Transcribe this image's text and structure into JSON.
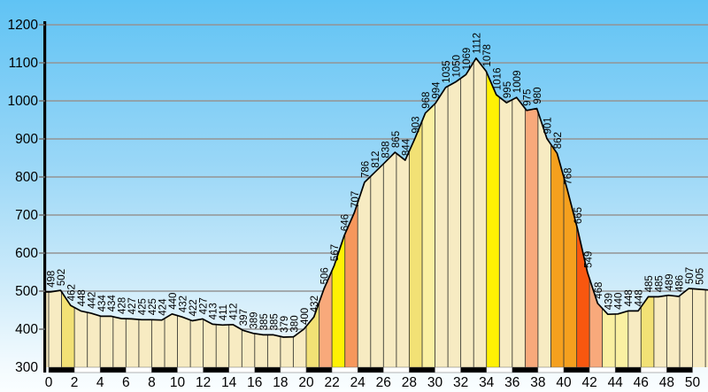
{
  "chart_data": {
    "type": "area",
    "title": "",
    "xlabel": "",
    "ylabel": "",
    "xlim": [
      0,
      50
    ],
    "ylim": [
      300,
      1200
    ],
    "grid": "horizontal-every-100m",
    "legend": "none",
    "x_ticks": [
      0,
      2,
      4,
      6,
      8,
      10,
      12,
      14,
      16,
      18,
      20,
      22,
      24,
      26,
      28,
      30,
      32,
      34,
      36,
      38,
      40,
      42,
      44,
      46,
      48,
      50
    ],
    "y_ticks": [
      300,
      400,
      500,
      600,
      700,
      800,
      900,
      1000,
      1100,
      1200
    ],
    "point_spacing_km": 0.8,
    "elevations": [
      498,
      502,
      462,
      448,
      442,
      434,
      434,
      428,
      427,
      425,
      425,
      424,
      440,
      432,
      422,
      427,
      413,
      411,
      412,
      397,
      389,
      385,
      385,
      379,
      380,
      400,
      432,
      506,
      567,
      646,
      707,
      786,
      812,
      838,
      865,
      844,
      903,
      968,
      994,
      1035,
      1050,
      1069,
      1112,
      1078,
      1016,
      995,
      1009,
      975,
      980,
      901,
      862,
      768,
      665,
      549,
      468,
      439,
      440,
      448,
      448,
      485,
      485,
      489,
      486,
      507,
      505
    ],
    "data_label_rotation_deg": -90,
    "axis_scale_bar": {
      "pattern": "alternating-black-white",
      "segment_km": 2,
      "colors": [
        "#000000",
        "#ffffff"
      ]
    },
    "bar_colors": [
      "cream",
      "yellow",
      "cream",
      "cream",
      "cream",
      "cream",
      "cream",
      "cream",
      "cream",
      "cream",
      "cream",
      "cream",
      "cream",
      "cream",
      "cream",
      "cream",
      "cream",
      "cream",
      "cream",
      "cream",
      "yellow",
      "salmon",
      "vivid",
      "salmon_deep",
      "cream",
      "cream",
      "cream",
      "cream",
      "yellow",
      "paleyellow",
      "cream",
      "cream",
      "cream",
      "cream",
      "vivid",
      "cream",
      "cream",
      "salmon",
      "cream",
      "orange",
      "orange",
      "red",
      "salmon",
      "paleyellow",
      "paleyellow",
      "cream",
      "yellow",
      "cream",
      "cream",
      "cream",
      "cream",
      "cream"
    ],
    "palette": {
      "cream": "#F7EBC2",
      "paleyellow": "#FAF0A2",
      "yellow": "#F2E175",
      "vivid": "#FFF104",
      "salmon": "#F8A97B",
      "salmon_deep": "#F6975C",
      "orange": "#F5A01E",
      "red": "#F8570F"
    },
    "colors": {
      "sky_top": "#60C3F4",
      "sky_mid": "#9AD7F7",
      "sky_low": "#CDEBFA",
      "sky_bottom": "#FAFEFF",
      "gridline": "#949494",
      "axis": "#000000",
      "profile_line": "#000000",
      "bar_separator": "#3C3C34",
      "tick_text": "#000000",
      "data_label_text": "#000000"
    }
  }
}
